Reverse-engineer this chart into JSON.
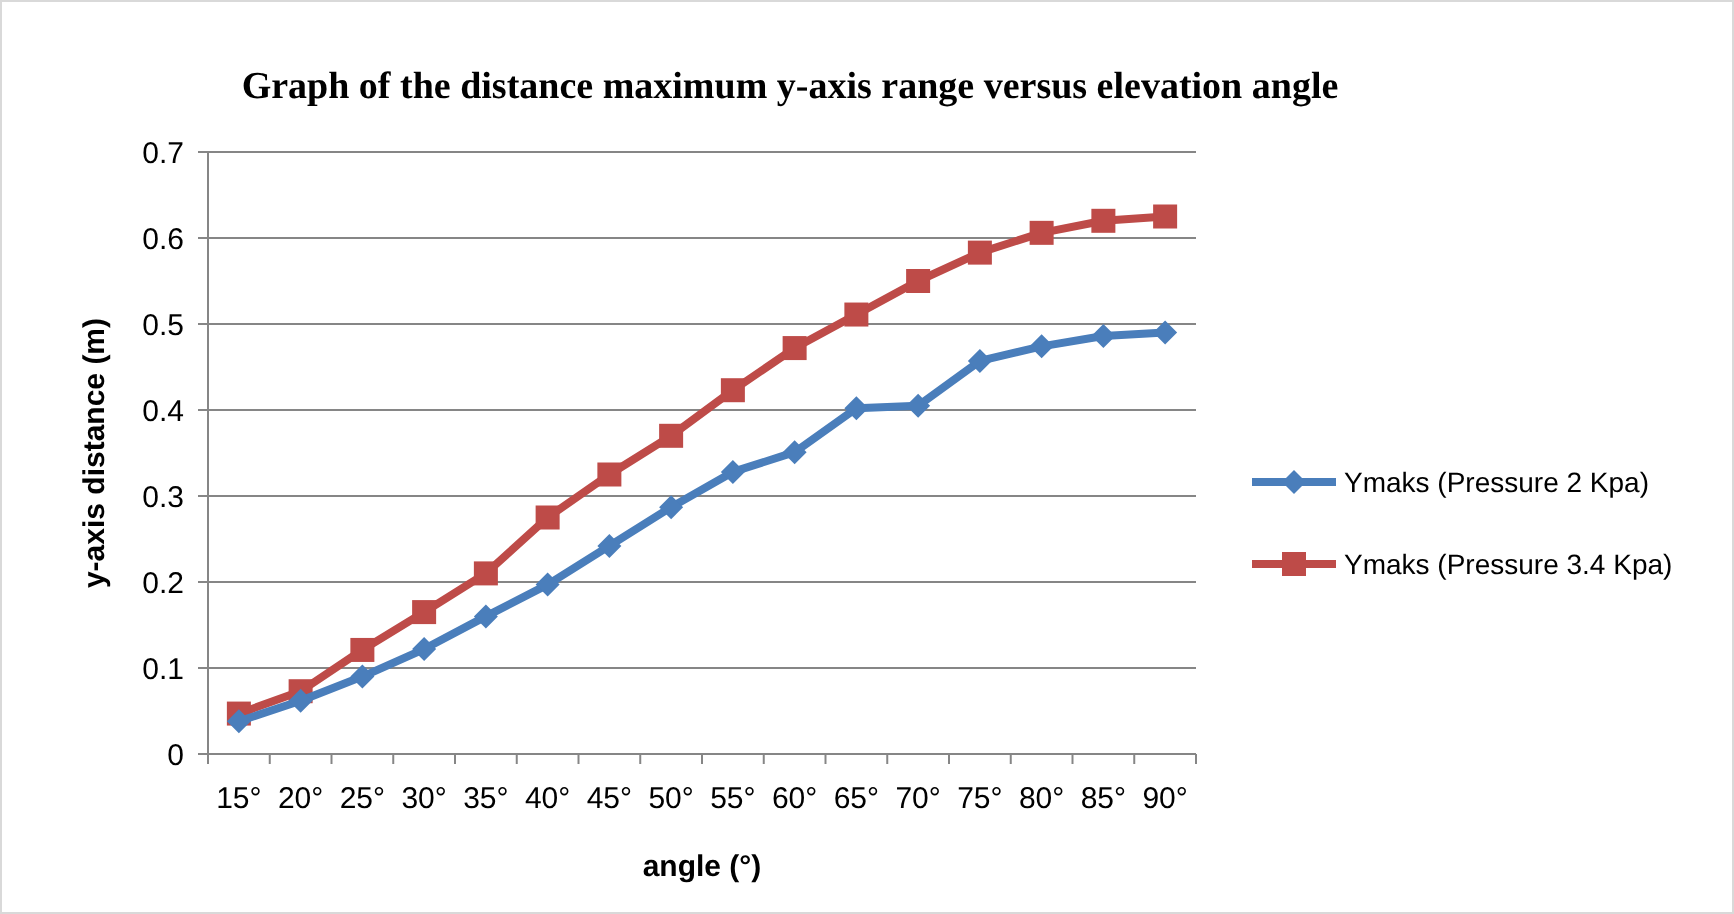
{
  "chart_data": {
    "type": "line",
    "title": "Graph of the distance maximum y-axis range versus elevation angle",
    "xlabel": "angle (°)",
    "ylabel": "y-axis distance (m)",
    "categories": [
      "15°",
      "20°",
      "25°",
      "30°",
      "35°",
      "40°",
      "45°",
      "50°",
      "55°",
      "60°",
      "65°",
      "70°",
      "75°",
      "80°",
      "85°",
      "90°"
    ],
    "series": [
      {
        "name": "Ymaks (Pressure 2 Kpa)",
        "color": "#4a7ebb",
        "marker": "diamond",
        "values": [
          0.038,
          0.062,
          0.09,
          0.122,
          0.16,
          0.197,
          0.242,
          0.287,
          0.328,
          0.351,
          0.402,
          0.405,
          0.457,
          0.474,
          0.486,
          0.49
        ]
      },
      {
        "name": "Ymaks (Pressure 3.4 Kpa)",
        "color": "#be4b48",
        "marker": "square",
        "values": [
          0.047,
          0.073,
          0.121,
          0.165,
          0.21,
          0.275,
          0.325,
          0.37,
          0.423,
          0.472,
          0.511,
          0.55,
          0.583,
          0.606,
          0.62,
          0.625
        ]
      }
    ],
    "ylim": [
      0,
      0.7
    ],
    "yticks": [
      {
        "value": 0,
        "label": "0"
      },
      0.1,
      0.2,
      0.3,
      0.4,
      0.5,
      0.6,
      0.7
    ],
    "grid": "y",
    "legend": "right"
  }
}
